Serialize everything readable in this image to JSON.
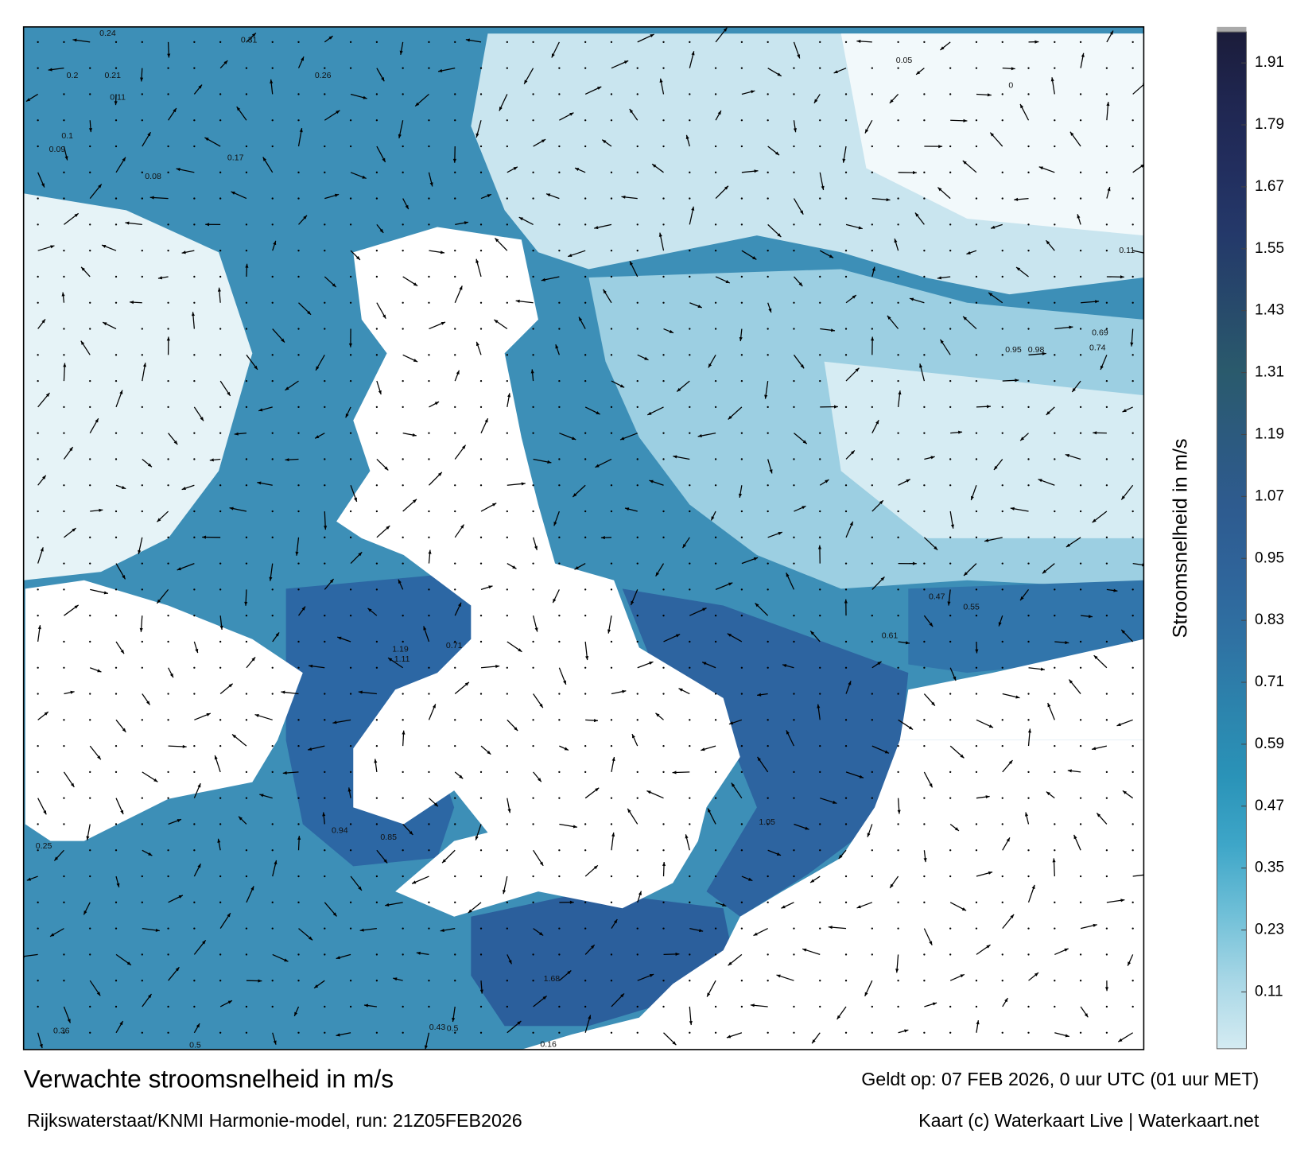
{
  "header": {
    "title": "Verwachte stroomsnelheid in m/s",
    "subtitle": "Rijkswaterstaat/KNMI Harmonie-model, run: 21Z05FEB2026",
    "valid": "Geldt op: 07 FEB 2026, 0 uur UTC (01 uur MET)",
    "credit": "Kaart (c) Waterkaart Live | Waterkaart.net"
  },
  "colorbar": {
    "label": "Stroomsnelheid in m/s",
    "lim": [
      0,
      1.97
    ],
    "ticks": [
      0.11,
      0.23,
      0.35,
      0.47,
      0.59,
      0.71,
      0.83,
      0.95,
      1.07,
      1.19,
      1.31,
      1.43,
      1.55,
      1.67,
      1.79,
      1.91
    ],
    "colors": [
      "#d4ebf2",
      "#a8d7e6",
      "#6fbfd7",
      "#3ea6c8",
      "#2a93b8",
      "#2c84ad",
      "#2f72a3",
      "#2f649a",
      "#2e5b8f",
      "#2c5a7f",
      "#2a5a6c",
      "#27496b",
      "#24396a",
      "#222e5e",
      "#1f2650",
      "#1b1c3a"
    ]
  },
  "map_labels": [
    "0.24",
    "0.31",
    "0.2",
    "0.21",
    "0.11",
    "0.1",
    "0.09",
    "0.08",
    "0.17",
    "0.26",
    "0.05",
    "0",
    "0.11",
    "1.19",
    "0.71",
    "1.11",
    "0.94",
    "0.85",
    "1.68",
    "1.05",
    "0.61",
    "0.55",
    "0.47",
    "0.98",
    "0.74",
    "0.25",
    "0.36",
    "0.5",
    "0.16",
    "0.5",
    "0.43",
    "0.95",
    "0.69"
  ]
}
